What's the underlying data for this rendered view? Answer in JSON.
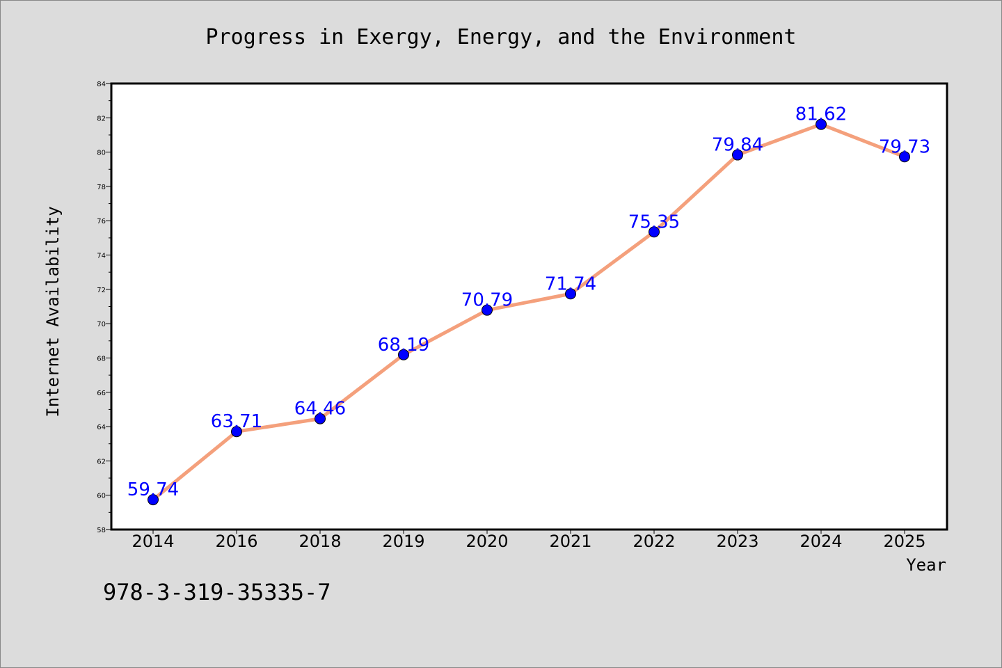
{
  "chart_data": {
    "type": "line",
    "title": "Progress in Exergy, Energy, and the Environment",
    "xlabel": "Year",
    "ylabel": "Internet Availability",
    "categories": [
      "2014",
      "2016",
      "2018",
      "2019",
      "2020",
      "2021",
      "2022",
      "2023",
      "2024",
      "2025"
    ],
    "values": [
      59.74,
      63.71,
      64.46,
      68.19,
      70.79,
      71.74,
      75.35,
      79.84,
      81.62,
      79.73
    ],
    "value_labels": [
      "59.74",
      "63.71",
      "64.46",
      "68.19",
      "70.79",
      "71.74",
      "75.35",
      "79.84",
      "81.62",
      "79.73"
    ],
    "ylim": [
      58,
      84
    ],
    "yticks": [
      "58",
      "60",
      "62",
      "64",
      "66",
      "68",
      "70",
      "72",
      "74",
      "76",
      "78",
      "80",
      "82",
      "84"
    ],
    "line_color": "#f4a07c",
    "marker_color": "#0000ff",
    "label_color": "#0000ff",
    "grid": false,
    "legend": "none"
  },
  "footnote": "978-3-319-35335-7",
  "colors": {
    "background": "#dcdcdc",
    "plot_background": "#ffffff"
  }
}
